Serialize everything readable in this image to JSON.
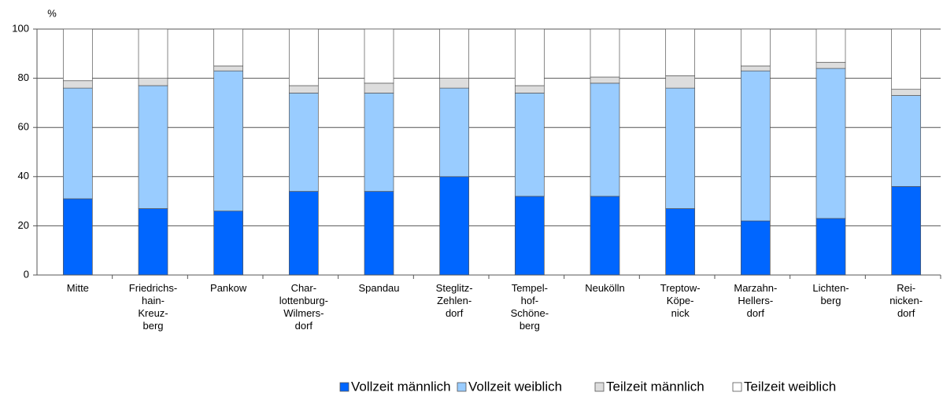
{
  "chart_data": {
    "type": "stacked_bar",
    "y_label": "%",
    "categories": [
      "Mitte",
      "Friedrichs-\nhain-\nKreuz-\nberg",
      "Pankow",
      "Char-\nlottenburg-\nWilmers-\ndorf",
      "Spandau",
      "Steglitz-\nZehlen-\ndorf",
      "Tempel-\nhof-\nSchöne-\nberg",
      "Neukölln",
      "Treptow-\nKöpe-\nnick",
      "Marzahn-\nHellers-\ndorf",
      "Lichten-\nberg",
      "Rei-\nnicken-\ndorf"
    ],
    "series": [
      {
        "name": "Vollzeit männlich",
        "color": "#0066ff",
        "values": [
          31,
          27,
          26,
          34,
          34,
          40,
          32,
          32,
          27,
          22,
          23,
          36
        ]
      },
      {
        "name": "Vollzeit weiblich",
        "color": "#99ccff",
        "values": [
          45,
          50,
          57,
          40,
          40,
          36,
          42,
          46,
          49,
          61,
          61,
          37
        ]
      },
      {
        "name": "Teilzeit männlich",
        "color": "#dddddd",
        "values": [
          3,
          3,
          2,
          3,
          4,
          4,
          3,
          2.5,
          5,
          2,
          2.5,
          2.5
        ]
      },
      {
        "name": "Teilzeit weiblich",
        "color": "#ffffff",
        "values": [
          21,
          20,
          15,
          23,
          22,
          20,
          23,
          19.5,
          19,
          15,
          13.5,
          24.5
        ]
      }
    ],
    "ylim": [
      0,
      100
    ],
    "yticks": [
      0,
      20,
      40,
      60,
      80,
      100
    ],
    "grid": true
  }
}
